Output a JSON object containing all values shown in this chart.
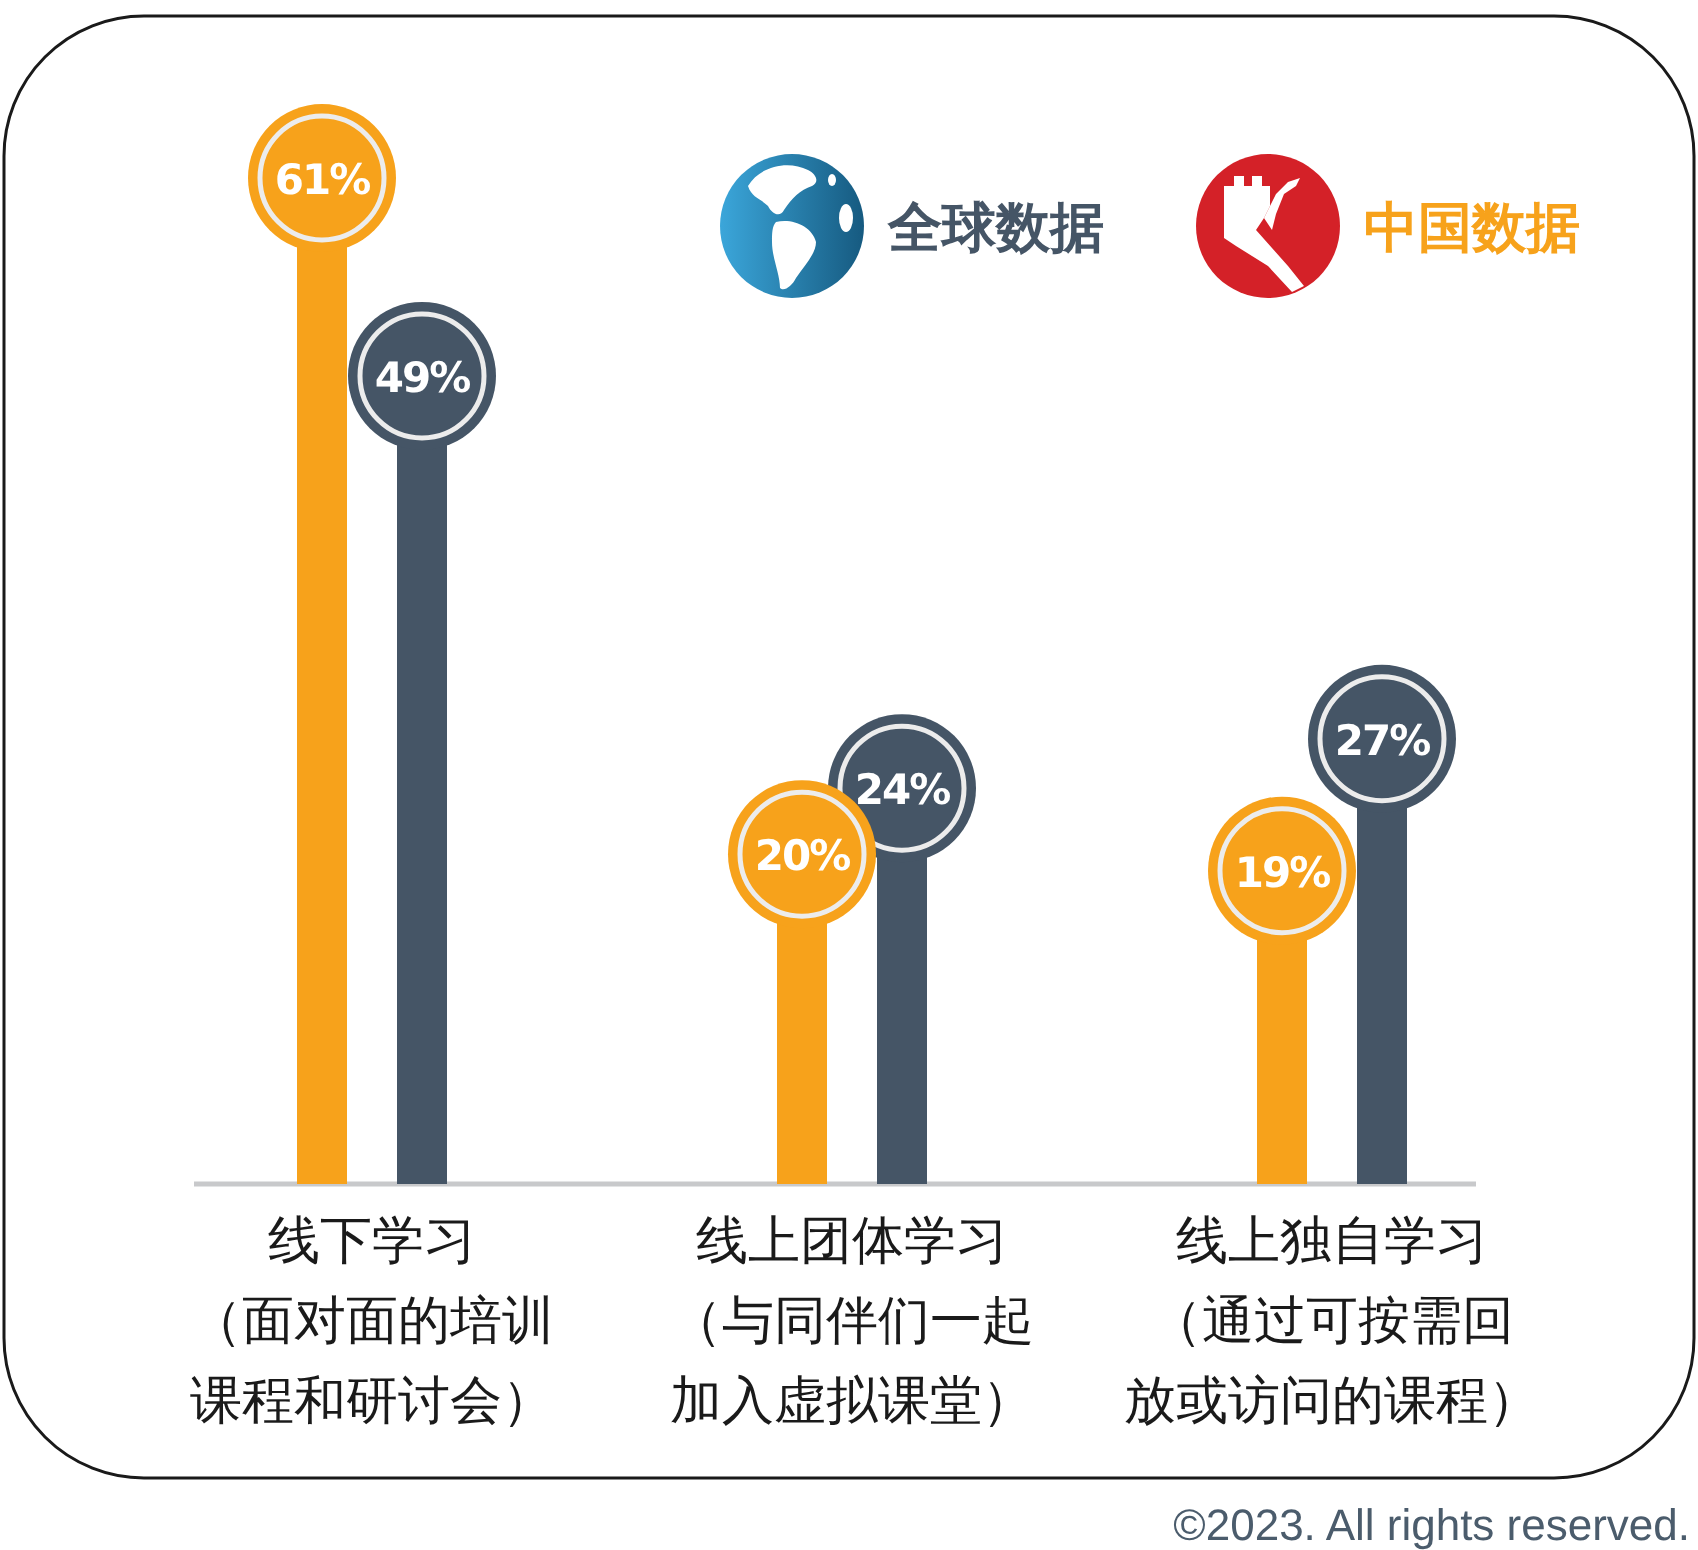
{
  "chart_data": {
    "type": "lollipop",
    "categories": [
      "线下学习（面对面的培训课程和研讨会）",
      "线上团体学习（与同伴们一起加入虚拟课堂）",
      "线上独自学习（通过可按需回放或访问的课程）"
    ],
    "series": [
      {
        "name": "中国数据",
        "color": "#f7a21b",
        "values": [
          61,
          20,
          19
        ],
        "value_labels": [
          "61%",
          "20%",
          "19%"
        ]
      },
      {
        "name": "全球数据",
        "color": "#455566",
        "values": [
          49,
          24,
          27
        ],
        "value_labels": [
          "49%",
          "24%",
          "27%"
        ]
      }
    ],
    "legend": "top right",
    "annotations": [
      "©2023. All rights reserved."
    ]
  }
}
